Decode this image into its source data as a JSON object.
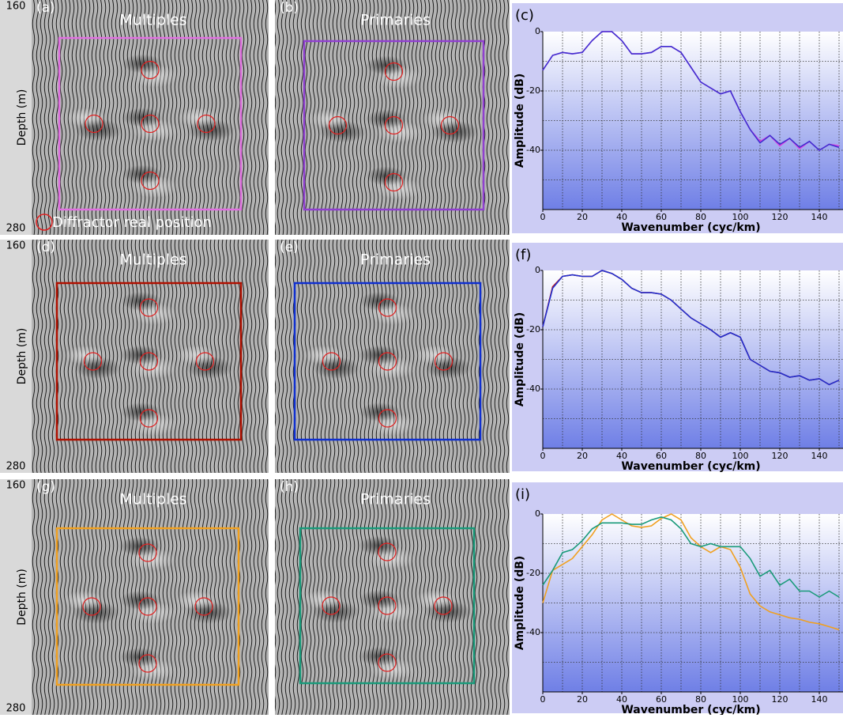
{
  "rows": [
    {
      "depth_top": "160",
      "depth_bottom": "280",
      "depth_label": "Depth (m)",
      "left": {
        "label": "(a)",
        "title": "Multiples"
      },
      "right": {
        "label": "(b)",
        "title": "Primaries"
      },
      "note": "Diffractor real position"
    },
    {
      "depth_top": "160",
      "depth_bottom": "280",
      "depth_label": "Depth (m)",
      "left": {
        "label": "(d)",
        "title": "Multiples"
      },
      "right": {
        "label": "(e)",
        "title": "Primaries"
      }
    },
    {
      "depth_top": "160",
      "depth_bottom": "280",
      "depth_label": "Depth (m)",
      "left": {
        "label": "(g)",
        "title": "Multiples"
      },
      "right": {
        "label": "(h)",
        "title": "Primaries"
      }
    }
  ],
  "chart_data": [
    {
      "type": "line",
      "panel_label": "(c)",
      "xlabel": "Wavenumber (cyc/km)",
      "ylabel": "Amplitude (dB)",
      "x": [
        0,
        5,
        10,
        15,
        20,
        25,
        30,
        35,
        40,
        45,
        50,
        55,
        60,
        65,
        70,
        75,
        80,
        85,
        90,
        95,
        100,
        105,
        110,
        115,
        120,
        125,
        130,
        135,
        140,
        145,
        150
      ],
      "xlim": [
        0,
        150
      ],
      "ylim": [
        -60,
        0
      ],
      "xticks": [
        0,
        20,
        40,
        60,
        80,
        100,
        120,
        140
      ],
      "yticks": [
        0,
        -20,
        -40
      ],
      "xgrid": [
        10,
        20,
        30,
        40,
        50,
        60,
        70,
        80,
        90,
        100,
        110,
        120,
        130,
        140,
        150
      ],
      "ygrid": [
        -10,
        -20,
        -30,
        -40,
        -50
      ],
      "series": [
        {
          "color": "#e040e0",
          "values": [
            -13,
            -8,
            -7,
            -7.5,
            -7,
            -3,
            0,
            0,
            -3,
            -7.5,
            -7.5,
            -7,
            -5,
            -5,
            -7,
            -12,
            -17,
            -19,
            -21,
            -20,
            -27,
            -33,
            -37,
            -35,
            -38.5,
            -36,
            -39.5,
            -37,
            -40,
            -38,
            -38.5
          ]
        },
        {
          "color": "#4030d0",
          "values": [
            -13,
            -8,
            -7,
            -7.5,
            -7,
            -3,
            0,
            0,
            -3,
            -7.5,
            -7.5,
            -7,
            -5,
            -5,
            -7,
            -12,
            -17,
            -19,
            -21,
            -20,
            -27,
            -33,
            -37.5,
            -35,
            -38,
            -36,
            -39,
            -37,
            -40,
            -38,
            -39
          ]
        }
      ]
    },
    {
      "type": "line",
      "panel_label": "(f)",
      "xlabel": "Wavenumber (cyc/km)",
      "ylabel": "Amplitude (dB)",
      "x": [
        0,
        5,
        10,
        15,
        20,
        25,
        30,
        35,
        40,
        45,
        50,
        55,
        60,
        65,
        70,
        75,
        80,
        85,
        90,
        95,
        100,
        105,
        110,
        115,
        120,
        125,
        130,
        135,
        140,
        145,
        150
      ],
      "xlim": [
        0,
        150
      ],
      "ylim": [
        -60,
        0
      ],
      "xticks": [
        0,
        20,
        40,
        60,
        80,
        100,
        120,
        140
      ],
      "yticks": [
        0,
        -20,
        -40
      ],
      "xgrid": [
        10,
        20,
        30,
        40,
        50,
        60,
        70,
        80,
        90,
        100,
        110,
        120,
        130,
        140,
        150
      ],
      "ygrid": [
        -10,
        -20,
        -30,
        -40,
        -50
      ],
      "series": [
        {
          "color": "#c01010",
          "values": [
            -19,
            -5.5,
            -2,
            -1.5,
            -2,
            -2,
            0,
            -1,
            -3,
            -6,
            -7.5,
            -7.5,
            -8,
            -10,
            -13,
            -16,
            -18,
            -20,
            -22.5,
            -21,
            -22.5,
            -30,
            -32,
            -34,
            -34.5,
            -36,
            -35.5,
            -37,
            -36.5,
            -38.5,
            -37
          ]
        },
        {
          "color": "#2030d0",
          "values": [
            -19,
            -6,
            -2,
            -1.5,
            -2,
            -2,
            0,
            -1,
            -3,
            -6,
            -7.5,
            -7.5,
            -8,
            -10,
            -13,
            -16,
            -18,
            -20,
            -22.5,
            -21,
            -22.5,
            -30,
            -32,
            -34,
            -34.5,
            -36,
            -35.5,
            -37,
            -36.5,
            -38.5,
            -37
          ]
        }
      ]
    },
    {
      "type": "line",
      "panel_label": "(i)",
      "xlabel": "Wavenumber (cyc/km)",
      "ylabel": "Amplitude (dB)",
      "x": [
        0,
        5,
        10,
        15,
        20,
        25,
        30,
        35,
        40,
        45,
        50,
        55,
        60,
        65,
        70,
        75,
        80,
        85,
        90,
        95,
        100,
        105,
        110,
        115,
        120,
        125,
        130,
        135,
        140,
        145,
        150
      ],
      "xlim": [
        0,
        150
      ],
      "ylim": [
        -60,
        0
      ],
      "xticks": [
        0,
        20,
        40,
        60,
        80,
        100,
        120,
        140
      ],
      "yticks": [
        0,
        -20,
        -40
      ],
      "xgrid": [
        10,
        20,
        30,
        40,
        50,
        60,
        70,
        80,
        90,
        100,
        110,
        120,
        130,
        140,
        150
      ],
      "ygrid": [
        -10,
        -20,
        -30,
        -40,
        -50
      ],
      "series": [
        {
          "color": "#f0a020",
          "values": [
            -30,
            -19,
            -17,
            -15,
            -11,
            -7,
            -2,
            0,
            -2,
            -4,
            -4.5,
            -4,
            -1.5,
            0,
            -2,
            -8,
            -11,
            -13,
            -11,
            -12,
            -18,
            -27,
            -31,
            -33,
            -34,
            -35,
            -35.5,
            -36.5,
            -37,
            -38,
            -39
          ]
        },
        {
          "color": "#1a9a7a",
          "values": [
            -24,
            -19,
            -13,
            -12,
            -9,
            -5,
            -3,
            -3,
            -3,
            -3.5,
            -3.5,
            -2,
            -1,
            -2,
            -5,
            -10,
            -11,
            -10,
            -11,
            -11,
            -11,
            -15,
            -21,
            -19,
            -24,
            -22,
            -26,
            -26,
            -28,
            -26,
            -28
          ]
        }
      ]
    }
  ]
}
